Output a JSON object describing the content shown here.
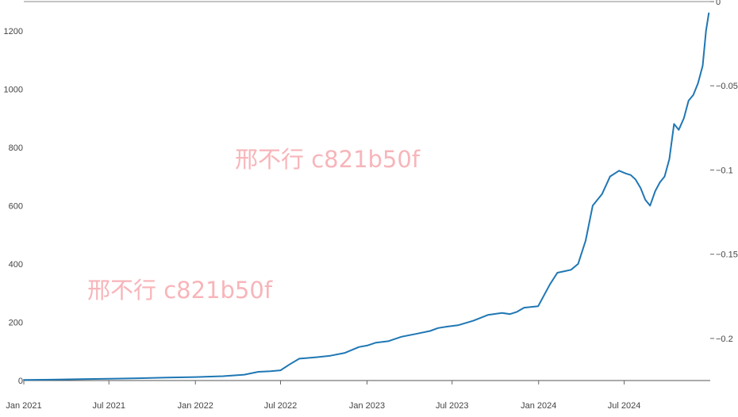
{
  "chart_data": {
    "type": "line",
    "title": "",
    "xlabel": "",
    "ylabel": "",
    "x_range": [
      "2021-01-01",
      "2024-12-31"
    ],
    "ylim": [
      0,
      1300
    ],
    "y_ticks": [
      0,
      200,
      400,
      600,
      800,
      1000,
      1200
    ],
    "y2lim": [
      -0.225,
      0.0
    ],
    "y2_ticks": [
      "0",
      "−0.05",
      "−0.1",
      "−0.15",
      "−0.2"
    ],
    "x_ticks": [
      "Jan 2021",
      "Jul 2021",
      "Jan 2022",
      "Jul 2022",
      "Jan 2023",
      "Jul 2023",
      "Jan 2024",
      "Jul 2024"
    ],
    "grid": false,
    "series": [
      {
        "color": "#1f77b4",
        "x": [
          "2021-01-01",
          "2021-03-01",
          "2021-05-01",
          "2021-07-01",
          "2021-09-01",
          "2021-11-01",
          "2022-01-01",
          "2022-03-01",
          "2022-04-15",
          "2022-05-15",
          "2022-06-10",
          "2022-07-01",
          "2022-07-20",
          "2022-08-10",
          "2022-09-15",
          "2022-10-15",
          "2022-11-15",
          "2022-12-15",
          "2023-01-01",
          "2023-01-20",
          "2023-02-15",
          "2023-03-15",
          "2023-04-15",
          "2023-05-15",
          "2023-06-01",
          "2023-06-20",
          "2023-07-15",
          "2023-08-15",
          "2023-09-15",
          "2023-10-15",
          "2023-11-01",
          "2023-11-15",
          "2023-12-01",
          "2023-12-31",
          "2024-01-10",
          "2024-01-25",
          "2024-02-10",
          "2024-02-25",
          "2024-03-10",
          "2024-03-25",
          "2024-04-10",
          "2024-04-25",
          "2024-05-15",
          "2024-06-01",
          "2024-06-20",
          "2024-07-05",
          "2024-07-15",
          "2024-07-25",
          "2024-08-05",
          "2024-08-15",
          "2024-08-25",
          "2024-09-05",
          "2024-09-15",
          "2024-09-25",
          "2024-10-05",
          "2024-10-15",
          "2024-10-25",
          "2024-11-05",
          "2024-11-15",
          "2024-11-25",
          "2024-12-05",
          "2024-12-15",
          "2024-12-22",
          "2024-12-28"
        ],
        "values": [
          2,
          3,
          5,
          6,
          8,
          10,
          12,
          15,
          20,
          30,
          32,
          35,
          55,
          75,
          80,
          85,
          95,
          115,
          120,
          130,
          135,
          150,
          160,
          170,
          180,
          185,
          190,
          205,
          225,
          232,
          228,
          235,
          250,
          255,
          285,
          330,
          370,
          375,
          380,
          400,
          480,
          600,
          640,
          700,
          720,
          710,
          705,
          690,
          660,
          620,
          600,
          650,
          680,
          700,
          760,
          880,
          860,
          900,
          960,
          980,
          1020,
          1080,
          1200,
          1260
        ]
      }
    ]
  },
  "watermarks": [
    "邢不行 c821b50f",
    "邢不行 c821b50f"
  ]
}
